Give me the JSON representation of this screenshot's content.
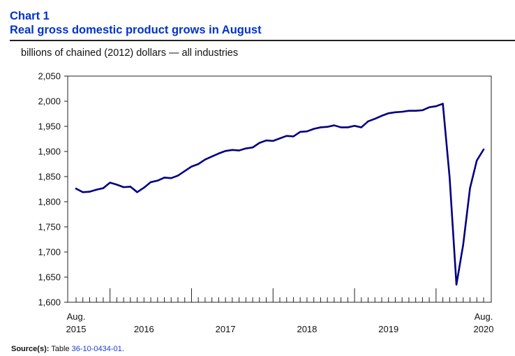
{
  "header": {
    "chart_number": "Chart 1",
    "title": "Real gross domestic product grows in August",
    "subtitle": "billions of chained (2012) dollars — all industries"
  },
  "footer": {
    "source_label": "Source(s):",
    "source_prefix": "Table",
    "source_table": "36-10-0434-01",
    "source_suffix": "."
  },
  "colors": {
    "line": "#000080",
    "title": "#0033cc",
    "link": "#1a3ec8"
  },
  "chart_data": {
    "type": "line",
    "title": "Real gross domestic product grows in August",
    "ylabel": "billions of chained (2012) dollars — all industries",
    "xlabel": "",
    "ylim": [
      1600,
      2050
    ],
    "yticks": [
      1600,
      1650,
      1700,
      1750,
      1800,
      1850,
      1900,
      1950,
      2000,
      2050
    ],
    "ytick_labels": [
      "1,600",
      "1,650",
      "1,700",
      "1,750",
      "1,800",
      "1,850",
      "1,900",
      "1,950",
      "2,000",
      "2,050"
    ],
    "x_start": "2015-08",
    "x_end": "2020-08",
    "x_labels": [
      {
        "month_index": 0,
        "line1": "Aug.",
        "line2": "2015"
      },
      {
        "month_index": 10,
        "line1": "",
        "line2": "2016"
      },
      {
        "month_index": 22,
        "line1": "",
        "line2": "2017"
      },
      {
        "month_index": 34,
        "line1": "",
        "line2": "2018"
      },
      {
        "month_index": 46,
        "line1": "",
        "line2": "2019"
      },
      {
        "month_index": 60,
        "line1": "Aug.",
        "line2": "2020"
      }
    ],
    "year_boundaries": [
      5,
      17,
      29,
      41,
      53
    ],
    "grid": false,
    "series": [
      {
        "name": "Real GDP, all industries",
        "values": [
          1826,
          1819,
          1820,
          1824,
          1827,
          1838,
          1834,
          1829,
          1830,
          1819,
          1828,
          1839,
          1842,
          1848,
          1847,
          1852,
          1861,
          1870,
          1875,
          1884,
          1890,
          1896,
          1901,
          1903,
          1902,
          1906,
          1908,
          1917,
          1922,
          1921,
          1926,
          1931,
          1930,
          1939,
          1940,
          1945,
          1948,
          1949,
          1952,
          1948,
          1948,
          1951,
          1948,
          1960,
          1965,
          1971,
          1976,
          1978,
          1979,
          1981,
          1981,
          1982,
          1988,
          1990,
          1995,
          1848,
          1635,
          1715,
          1827,
          1882,
          1904
        ]
      }
    ]
  }
}
